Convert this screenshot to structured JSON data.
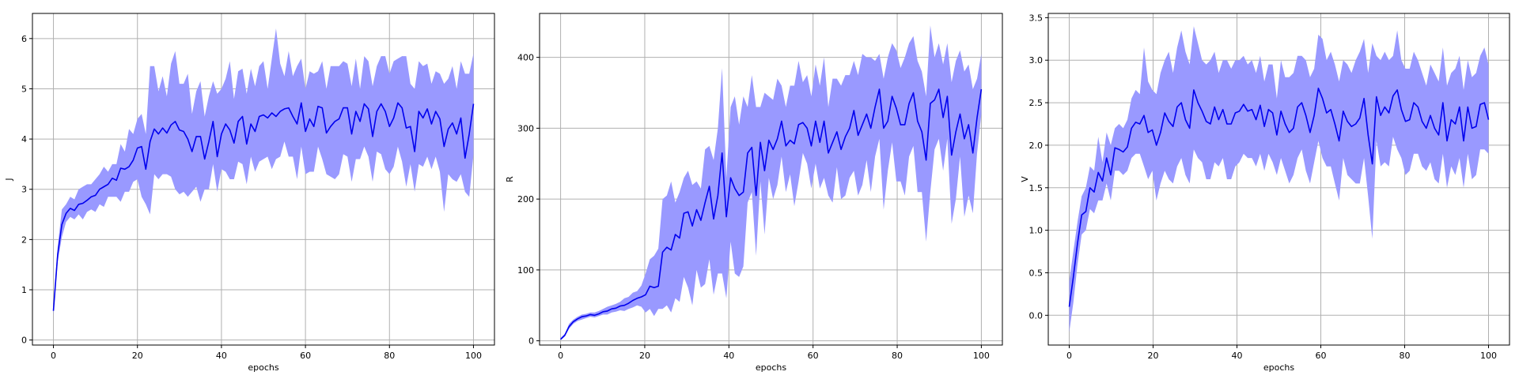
{
  "chart_data": [
    {
      "type": "line",
      "title": "",
      "xlabel": "epochs",
      "ylabel": "J",
      "xlim": [
        -5,
        105
      ],
      "ylim": [
        -0.1,
        6.5
      ],
      "xticks": [
        0,
        20,
        40,
        60,
        80,
        100
      ],
      "yticks": [
        0,
        1,
        2,
        3,
        4,
        5,
        6
      ],
      "grid": true,
      "series": [
        {
          "mean": [
            0.58,
            1.7,
            2.3,
            2.52,
            2.62,
            2.58,
            2.7,
            2.72,
            2.78,
            2.85,
            2.88,
            3.0,
            3.05,
            3.1,
            3.22,
            3.18,
            3.42,
            3.4,
            3.45,
            3.58,
            3.82,
            3.85,
            3.4,
            3.95,
            4.2,
            4.1,
            4.22,
            4.12,
            4.28,
            4.35,
            4.18,
            4.15,
            4.0,
            3.75,
            4.05,
            4.05,
            3.6,
            3.95,
            4.35,
            3.65,
            4.1,
            4.3,
            4.18,
            3.92,
            4.35,
            4.45,
            3.9,
            4.3,
            4.15,
            4.45,
            4.48,
            4.42,
            4.52,
            4.45,
            4.55,
            4.6,
            4.62,
            4.45,
            4.3,
            4.72,
            4.15,
            4.4,
            4.25,
            4.65,
            4.62,
            4.12,
            4.25,
            4.35,
            4.4,
            4.62,
            4.62,
            4.1,
            4.55,
            4.35,
            4.7,
            4.6,
            4.05,
            4.55,
            4.7,
            4.55,
            4.25,
            4.42,
            4.72,
            4.62,
            4.22,
            4.25,
            3.75,
            4.55,
            4.42,
            4.6,
            4.3,
            4.55,
            4.4,
            3.85,
            4.2,
            4.32,
            4.1,
            4.42,
            3.62,
            4.1,
            4.7
          ],
          "upper": [
            0.7,
            1.85,
            2.6,
            2.7,
            2.85,
            2.8,
            3.0,
            3.05,
            3.1,
            3.1,
            3.2,
            3.3,
            3.45,
            3.35,
            3.5,
            3.5,
            3.9,
            3.75,
            4.2,
            4.1,
            4.4,
            4.5,
            4.1,
            5.45,
            5.45,
            4.95,
            5.25,
            4.85,
            5.5,
            5.75,
            5.1,
            5.1,
            5.3,
            4.5,
            4.95,
            5.15,
            4.45,
            4.85,
            5.15,
            4.9,
            5.0,
            5.2,
            5.55,
            4.8,
            5.35,
            5.4,
            4.9,
            5.4,
            5.05,
            5.45,
            5.55,
            5.0,
            5.6,
            6.2,
            5.5,
            5.25,
            5.75,
            5.25,
            5.45,
            5.6,
            5.0,
            5.35,
            5.3,
            5.35,
            5.55,
            5.0,
            5.45,
            5.45,
            5.45,
            5.55,
            5.5,
            5.05,
            5.6,
            5.0,
            5.65,
            5.55,
            5.05,
            5.45,
            5.65,
            5.65,
            5.3,
            5.55,
            5.6,
            5.65,
            5.65,
            5.1,
            5.0,
            5.55,
            5.45,
            5.5,
            5.1,
            5.35,
            5.3,
            5.1,
            5.2,
            5.45,
            5.0,
            5.55,
            5.3,
            5.3,
            5.7
          ],
          "lower": [
            0.5,
            1.55,
            2.05,
            2.35,
            2.45,
            2.4,
            2.5,
            2.4,
            2.55,
            2.6,
            2.55,
            2.7,
            2.65,
            2.85,
            2.85,
            2.85,
            2.75,
            2.95,
            2.95,
            3.15,
            3.2,
            2.85,
            2.7,
            2.5,
            3.3,
            3.2,
            3.3,
            3.3,
            3.25,
            3.0,
            2.9,
            2.95,
            2.85,
            2.95,
            3.05,
            2.75,
            3.0,
            3.0,
            3.5,
            2.95,
            3.4,
            3.35,
            3.2,
            3.2,
            3.55,
            3.5,
            3.1,
            3.65,
            3.35,
            3.55,
            3.6,
            3.65,
            3.4,
            3.6,
            3.65,
            3.95,
            3.65,
            3.65,
            3.2,
            3.85,
            3.3,
            3.35,
            3.35,
            3.85,
            3.6,
            3.3,
            3.25,
            3.2,
            3.3,
            3.7,
            3.65,
            3.15,
            3.6,
            3.6,
            3.85,
            3.65,
            3.15,
            3.75,
            3.7,
            3.4,
            3.3,
            3.45,
            3.85,
            3.55,
            3.05,
            3.5,
            2.95,
            3.5,
            3.45,
            3.65,
            3.4,
            3.65,
            3.35,
            2.55,
            3.3,
            3.2,
            3.15,
            3.3,
            2.95,
            2.85,
            3.7
          ]
        }
      ]
    },
    {
      "type": "line",
      "title": "",
      "xlabel": "epochs",
      "ylabel": "R",
      "xlim": [
        -5,
        105
      ],
      "ylim": [
        -6,
        462
      ],
      "xticks": [
        0,
        20,
        40,
        60,
        80,
        100
      ],
      "yticks": [
        0,
        100,
        200,
        300,
        400
      ],
      "grid": true,
      "series": [
        {
          "mean": [
            2,
            8,
            20,
            27,
            31,
            34,
            35,
            37,
            36,
            38,
            41,
            42,
            45,
            46,
            49,
            50,
            53,
            57,
            60,
            62,
            65,
            77,
            75,
            77,
            125,
            132,
            128,
            150,
            145,
            180,
            182,
            162,
            185,
            170,
            195,
            218,
            172,
            205,
            265,
            175,
            230,
            215,
            205,
            210,
            265,
            273,
            205,
            280,
            240,
            283,
            270,
            285,
            310,
            275,
            283,
            278,
            305,
            308,
            300,
            275,
            310,
            280,
            310,
            265,
            280,
            295,
            270,
            288,
            300,
            325,
            290,
            305,
            320,
            300,
            330,
            355,
            300,
            310,
            345,
            328,
            305,
            305,
            335,
            350,
            310,
            295,
            255,
            335,
            340,
            355,
            315,
            345,
            262,
            295,
            320,
            285,
            305,
            265,
            315,
            355
          ],
          "upper": [
            4,
            10,
            24,
            30,
            34,
            37,
            38,
            40,
            40,
            42,
            45,
            48,
            50,
            52,
            55,
            60,
            62,
            68,
            70,
            78,
            95,
            115,
            120,
            130,
            200,
            205,
            225,
            195,
            210,
            230,
            240,
            220,
            225,
            215,
            270,
            275,
            255,
            300,
            385,
            230,
            330,
            345,
            305,
            345,
            330,
            375,
            330,
            330,
            350,
            345,
            340,
            370,
            360,
            330,
            360,
            360,
            395,
            365,
            375,
            345,
            390,
            360,
            400,
            330,
            370,
            370,
            360,
            375,
            375,
            395,
            375,
            405,
            400,
            400,
            395,
            405,
            370,
            400,
            420,
            410,
            385,
            400,
            420,
            430,
            395,
            380,
            345,
            445,
            400,
            420,
            390,
            420,
            365,
            395,
            410,
            380,
            390,
            355,
            370,
            405
          ],
          "lower": [
            1,
            6,
            17,
            24,
            28,
            30,
            32,
            34,
            33,
            35,
            37,
            37,
            40,
            41,
            43,
            42,
            45,
            47,
            50,
            48,
            40,
            45,
            35,
            45,
            45,
            50,
            40,
            60,
            55,
            90,
            75,
            50,
            100,
            75,
            80,
            115,
            65,
            95,
            95,
            60,
            140,
            95,
            90,
            105,
            195,
            210,
            120,
            225,
            150,
            230,
            200,
            220,
            260,
            210,
            235,
            190,
            225,
            265,
            250,
            215,
            250,
            215,
            230,
            205,
            195,
            245,
            200,
            205,
            230,
            240,
            205,
            220,
            255,
            210,
            260,
            285,
            185,
            240,
            280,
            225,
            225,
            205,
            260,
            275,
            210,
            210,
            140,
            210,
            270,
            285,
            240,
            285,
            165,
            200,
            260,
            175,
            205,
            180,
            265,
            320
          ]
        }
      ]
    },
    {
      "type": "line",
      "title": "",
      "xlabel": "epochs",
      "ylabel": "V",
      "xlim": [
        -5,
        105
      ],
      "ylim": [
        -0.35,
        3.55
      ],
      "xticks": [
        0,
        20,
        40,
        60,
        80,
        100
      ],
      "yticks": [
        0.0,
        0.5,
        1.0,
        1.5,
        2.0,
        2.5,
        3.0,
        3.5
      ],
      "grid": true,
      "series": [
        {
          "mean": [
            0.1,
            0.45,
            0.85,
            1.18,
            1.22,
            1.5,
            1.45,
            1.68,
            1.58,
            1.85,
            1.65,
            1.97,
            1.95,
            1.92,
            1.98,
            2.2,
            2.27,
            2.25,
            2.35,
            2.15,
            2.18,
            2.0,
            2.15,
            2.38,
            2.28,
            2.22,
            2.45,
            2.5,
            2.3,
            2.2,
            2.65,
            2.5,
            2.4,
            2.28,
            2.25,
            2.45,
            2.3,
            2.42,
            2.25,
            2.25,
            2.38,
            2.4,
            2.48,
            2.4,
            2.42,
            2.3,
            2.47,
            2.22,
            2.42,
            2.38,
            2.12,
            2.4,
            2.25,
            2.15,
            2.2,
            2.45,
            2.5,
            2.35,
            2.15,
            2.35,
            2.67,
            2.55,
            2.38,
            2.42,
            2.25,
            2.05,
            2.4,
            2.28,
            2.22,
            2.25,
            2.32,
            2.55,
            2.12,
            1.78,
            2.57,
            2.35,
            2.45,
            2.38,
            2.58,
            2.65,
            2.42,
            2.28,
            2.3,
            2.5,
            2.45,
            2.28,
            2.2,
            2.35,
            2.2,
            2.12,
            2.5,
            2.05,
            2.3,
            2.25,
            2.45,
            2.05,
            2.45,
            2.2,
            2.22,
            2.48,
            2.5,
            2.3
          ],
          "upper": [
            0.4,
            0.75,
            1.1,
            1.4,
            1.5,
            1.75,
            1.7,
            2.1,
            1.8,
            2.15,
            2.0,
            2.2,
            2.25,
            2.2,
            2.3,
            2.55,
            2.65,
            2.6,
            3.15,
            2.75,
            2.65,
            2.6,
            2.85,
            3.0,
            3.1,
            2.85,
            3.15,
            3.35,
            3.1,
            2.95,
            3.4,
            3.2,
            3.0,
            2.95,
            3.0,
            3.1,
            2.85,
            3.0,
            3.0,
            2.9,
            3.0,
            3.0,
            3.05,
            2.95,
            3.0,
            2.85,
            3.05,
            2.75,
            2.95,
            2.95,
            2.55,
            3.0,
            2.8,
            2.8,
            2.85,
            3.05,
            3.05,
            3.0,
            2.8,
            2.9,
            3.3,
            3.25,
            3.0,
            3.1,
            2.95,
            2.75,
            3.0,
            2.95,
            2.85,
            3.0,
            3.1,
            3.25,
            2.85,
            3.2,
            3.05,
            3.0,
            3.1,
            3.0,
            3.05,
            3.35,
            3.0,
            2.9,
            2.9,
            3.1,
            3.0,
            2.85,
            2.7,
            2.95,
            2.85,
            2.75,
            3.15,
            2.7,
            2.85,
            2.9,
            3.05,
            2.65,
            3.0,
            2.8,
            2.85,
            3.05,
            3.15,
            2.95
          ],
          "lower": [
            -0.2,
            0.15,
            0.6,
            0.95,
            1.0,
            1.25,
            1.2,
            1.35,
            1.35,
            1.55,
            1.35,
            1.7,
            1.7,
            1.65,
            1.7,
            1.85,
            1.9,
            1.9,
            1.75,
            1.6,
            1.7,
            1.35,
            1.55,
            1.7,
            1.6,
            1.55,
            1.75,
            1.85,
            1.65,
            1.55,
            1.95,
            1.85,
            1.8,
            1.6,
            1.6,
            1.8,
            1.75,
            1.85,
            1.6,
            1.6,
            1.75,
            1.8,
            1.9,
            1.85,
            1.85,
            1.75,
            1.9,
            1.7,
            1.9,
            1.8,
            1.65,
            1.85,
            1.7,
            1.55,
            1.65,
            1.85,
            1.95,
            1.7,
            1.55,
            1.8,
            2.05,
            1.85,
            1.75,
            1.75,
            1.55,
            1.35,
            1.85,
            1.65,
            1.6,
            1.55,
            1.55,
            1.85,
            1.4,
            0.9,
            2.05,
            1.75,
            1.8,
            1.75,
            2.1,
            1.95,
            1.85,
            1.65,
            1.7,
            1.9,
            1.9,
            1.75,
            1.7,
            1.8,
            1.6,
            1.55,
            1.9,
            1.5,
            1.75,
            1.65,
            1.85,
            1.5,
            1.9,
            1.6,
            1.65,
            1.95,
            1.95,
            1.9
          ]
        }
      ]
    }
  ]
}
